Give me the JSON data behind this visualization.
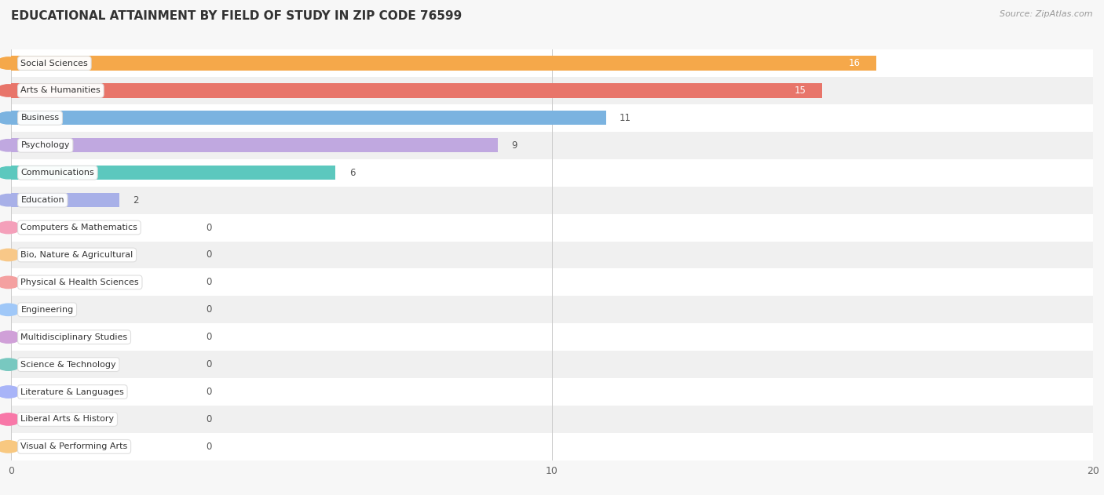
{
  "title": "EDUCATIONAL ATTAINMENT BY FIELD OF STUDY IN ZIP CODE 76599",
  "source": "Source: ZipAtlas.com",
  "categories": [
    "Social Sciences",
    "Arts & Humanities",
    "Business",
    "Psychology",
    "Communications",
    "Education",
    "Computers & Mathematics",
    "Bio, Nature & Agricultural",
    "Physical & Health Sciences",
    "Engineering",
    "Multidisciplinary Studies",
    "Science & Technology",
    "Literature & Languages",
    "Liberal Arts & History",
    "Visual & Performing Arts"
  ],
  "values": [
    16,
    15,
    11,
    9,
    6,
    2,
    0,
    0,
    0,
    0,
    0,
    0,
    0,
    0,
    0
  ],
  "bar_colors": [
    "#F5A84A",
    "#E8756A",
    "#7BB3E0",
    "#C0A8E0",
    "#5CC8BE",
    "#A8B0E8",
    "#F4A0BA",
    "#F8C888",
    "#F4A0A0",
    "#A0C8F8",
    "#D0A0D8",
    "#78C8C0",
    "#A8B4F8",
    "#F878A8",
    "#F8C880"
  ],
  "xlim": [
    0,
    20
  ],
  "bg_color": "#f7f7f7",
  "row_even_color": "#ffffff",
  "row_odd_color": "#f0f0f0",
  "title_fontsize": 11,
  "bar_height": 0.52
}
